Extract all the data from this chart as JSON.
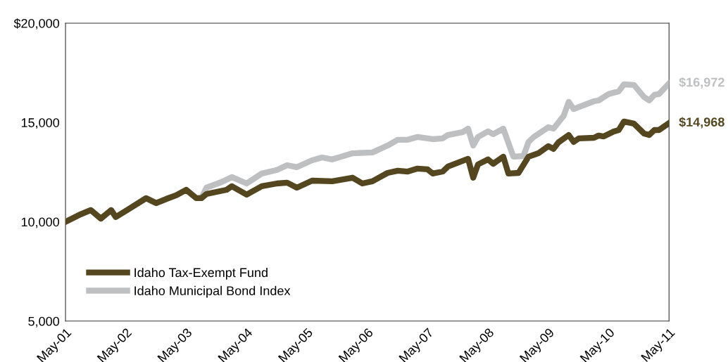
{
  "chart_data": {
    "type": "line",
    "x": [
      "2001-05",
      "2001-08",
      "2001-10",
      "2001-12",
      "2002-02",
      "2002-03",
      "2002-05",
      "2002-09",
      "2002-11",
      "2003-01",
      "2003-03",
      "2003-05",
      "2003-07",
      "2003-08",
      "2003-09",
      "2004-01",
      "2004-02",
      "2004-05",
      "2004-08",
      "2004-11",
      "2005-01",
      "2005-03",
      "2005-06",
      "2005-10",
      "2006-02",
      "2006-04",
      "2006-06",
      "2006-09",
      "2006-11",
      "2007-01",
      "2007-03",
      "2007-05",
      "2007-06",
      "2007-08",
      "2007-09",
      "2008-01",
      "2008-02",
      "2008-03",
      "2008-05",
      "2008-06",
      "2008-08",
      "2008-09",
      "2008-11",
      "2009-01",
      "2009-03",
      "2009-05",
      "2009-06",
      "2009-07",
      "2009-09",
      "2009-10",
      "2009-11",
      "2010-02",
      "2010-03",
      "2010-04",
      "2010-06",
      "2010-07",
      "2010-08",
      "2010-10",
      "2010-12",
      "2011-01",
      "2011-02",
      "2011-03",
      "2011-05"
    ],
    "series": [
      {
        "name": "Idaho Tax-Exempt Fund",
        "color": "#54471f",
        "values": [
          10000,
          10380,
          10590,
          10160,
          10590,
          10240,
          10550,
          11190,
          10940,
          11150,
          11330,
          11610,
          11190,
          11190,
          11400,
          11610,
          11790,
          11370,
          11790,
          11930,
          11970,
          11720,
          12070,
          12040,
          12220,
          11930,
          12040,
          12460,
          12570,
          12530,
          12680,
          12640,
          12430,
          12530,
          12780,
          13170,
          12220,
          12890,
          13140,
          12920,
          13280,
          12430,
          12460,
          13280,
          13450,
          13810,
          13670,
          14000,
          14370,
          14020,
          14200,
          14230,
          14340,
          14300,
          14550,
          14620,
          15050,
          14940,
          14440,
          14370,
          14620,
          14620,
          14968
        ]
      },
      {
        "name": "Idaho Municipal Bond Index",
        "color": "#bebfc1",
        "x": [
          "2001-05",
          "2001-08",
          "2001-10",
          "2001-12",
          "2002-02",
          "2002-03",
          "2002-05",
          "2002-09",
          "2002-11",
          "2003-01",
          "2003-03",
          "2003-05",
          "2003-07",
          "2003-08",
          "2003-09",
          "2003-12",
          "2004-02",
          "2004-05",
          "2004-08",
          "2004-11",
          "2005-01",
          "2005-03",
          "2005-06",
          "2005-08",
          "2005-10",
          "2006-02",
          "2006-06",
          "2006-09",
          "2006-11",
          "2007-01",
          "2007-03",
          "2007-06",
          "2007-08",
          "2007-09",
          "2007-12",
          "2008-01",
          "2008-02",
          "2008-03",
          "2008-05",
          "2008-06",
          "2008-08",
          "2008-10",
          "2008-12",
          "2009-01",
          "2009-02",
          "2009-05",
          "2009-06",
          "2009-08",
          "2009-09",
          "2009-10",
          "2010-02",
          "2010-03",
          "2010-05",
          "2010-07",
          "2010-08",
          "2010-10",
          "2010-12",
          "2011-01",
          "2011-02",
          "2011-03",
          "2011-05"
        ],
        "values": [
          10000,
          10380,
          10590,
          10160,
          10590,
          10240,
          10550,
          11190,
          10940,
          11150,
          11330,
          11610,
          11190,
          11190,
          11720,
          12000,
          12250,
          11930,
          12430,
          12610,
          12850,
          12750,
          13100,
          13240,
          13140,
          13450,
          13490,
          13840,
          14130,
          14130,
          14270,
          14160,
          14200,
          14370,
          14520,
          14690,
          13840,
          14270,
          14550,
          14410,
          14690,
          13280,
          13310,
          14020,
          14270,
          14760,
          14690,
          15330,
          16040,
          15680,
          16070,
          16110,
          16430,
          16570,
          16920,
          16890,
          16280,
          16110,
          16390,
          16430,
          16972
        ]
      }
    ],
    "xlim": [
      "2001-05",
      "2011-05"
    ],
    "xticks": [
      {
        "value": "2001-05",
        "label": "May-01"
      },
      {
        "value": "2002-05",
        "label": "May-02"
      },
      {
        "value": "2003-05",
        "label": "May-03"
      },
      {
        "value": "2004-05",
        "label": "May-04"
      },
      {
        "value": "2005-05",
        "label": "May-05"
      },
      {
        "value": "2006-05",
        "label": "May-06"
      },
      {
        "value": "2007-05",
        "label": "May-07"
      },
      {
        "value": "2008-05",
        "label": "May-08"
      },
      {
        "value": "2009-05",
        "label": "May-09"
      },
      {
        "value": "2010-05",
        "label": "May-10"
      },
      {
        "value": "2011-05",
        "label": "May-11"
      }
    ],
    "ylim": [
      5000,
      20000
    ],
    "yticks": [
      {
        "value": 5000,
        "label": "5,000"
      },
      {
        "value": 10000,
        "label": "10,000"
      },
      {
        "value": 15000,
        "label": "15,000"
      },
      {
        "value": 20000,
        "label": "$20,000"
      }
    ],
    "annotations": [
      {
        "text": "$14,968",
        "x": "2011-05",
        "y": 14968
      },
      {
        "text": "$16,972",
        "x": "2011-05",
        "y": 16972
      }
    ],
    "legend": "bottom left",
    "grid": false,
    "marker": "none",
    "line_style": "solid"
  }
}
